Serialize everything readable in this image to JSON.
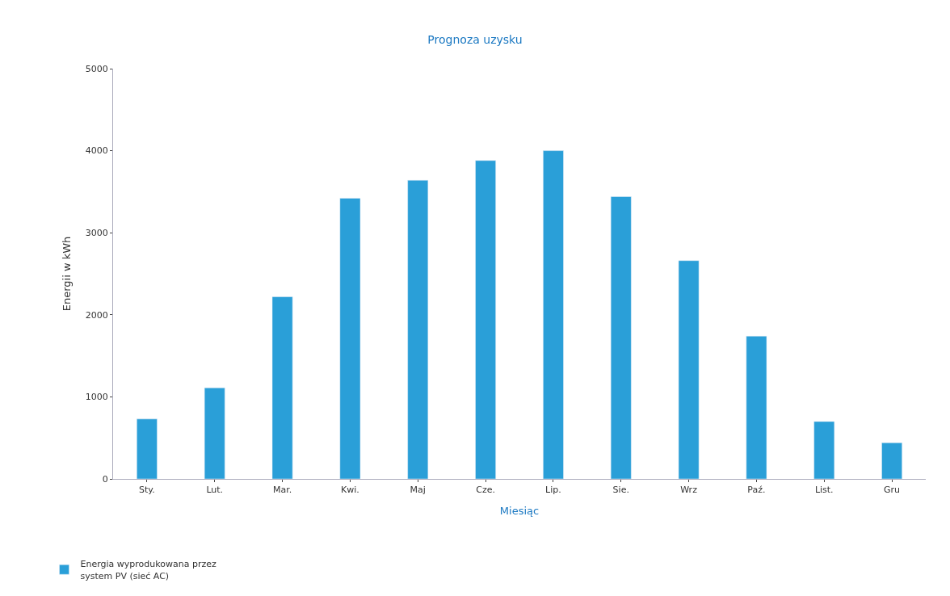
{
  "chart_data": {
    "type": "bar",
    "title": "Prognoza uzysku",
    "xlabel": "Miesiąc",
    "ylabel": "Energii w kWh",
    "categories": [
      "Sty.",
      "Lut.",
      "Mar.",
      "Kwi.",
      "Maj",
      "Cze.",
      "Lip.",
      "Sie.",
      "Wrz",
      "Paź.",
      "List.",
      "Gru"
    ],
    "series": [
      {
        "name": "Energia wyprodukowana przez\nsystem PV (sieć AC)",
        "color": "#2a9fd8",
        "values": [
          730,
          1110,
          2220,
          3420,
          3640,
          3880,
          4000,
          3440,
          2660,
          1740,
          700,
          440
        ]
      }
    ],
    "ylim": [
      0,
      5000
    ],
    "yticks": [
      0,
      1000,
      2000,
      3000,
      4000,
      5000
    ],
    "legend": "bottom left"
  }
}
